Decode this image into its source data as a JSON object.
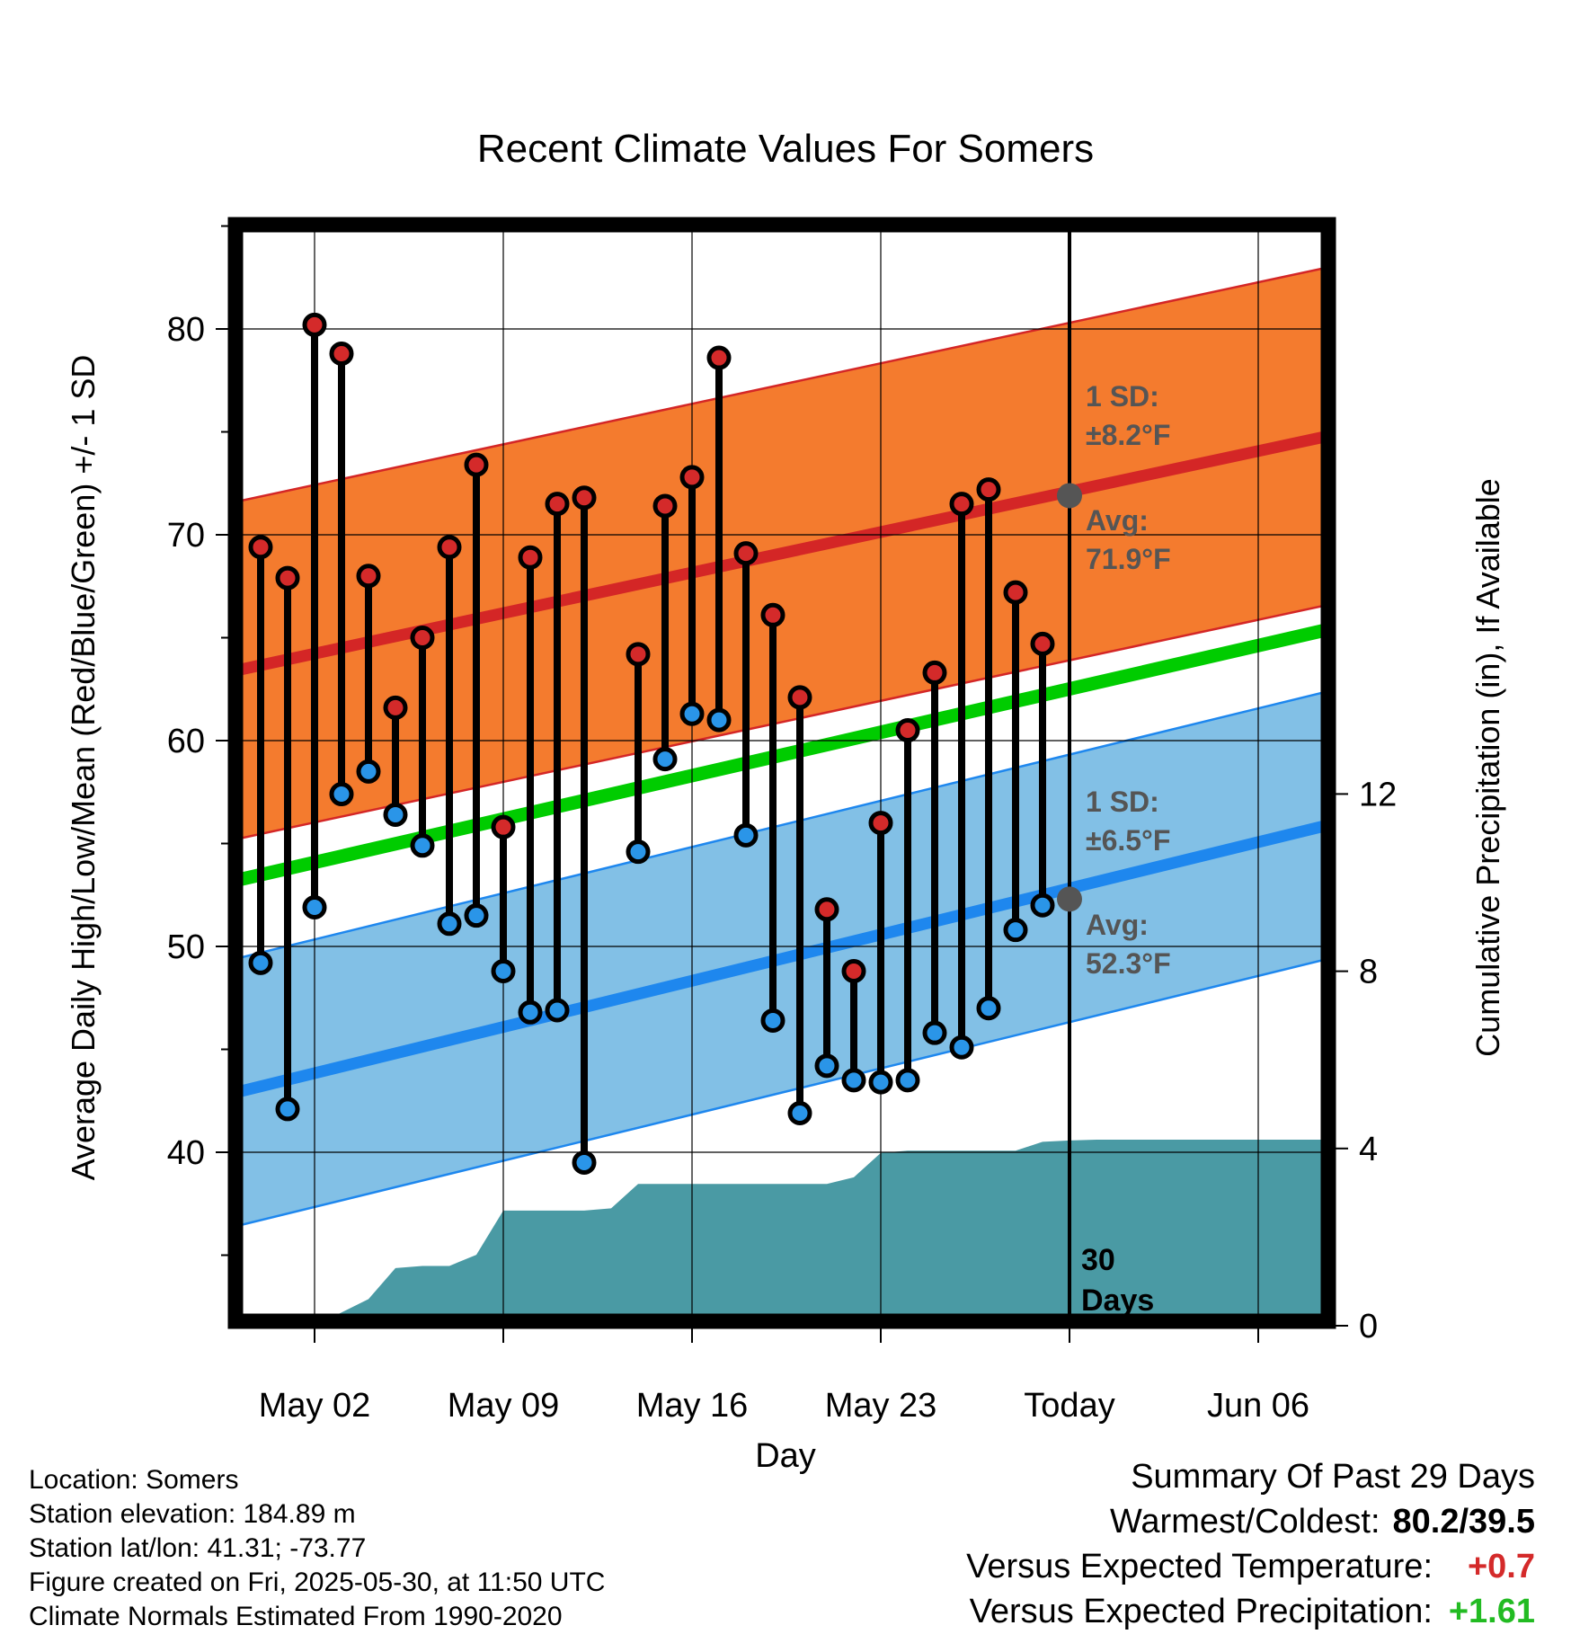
{
  "chart_data": {
    "type": "line",
    "title": "Recent Climate Values For Somers",
    "xlabel": "Day",
    "ylabel_left": "Average Daily High/Low/Mean (Red/Blue/Green) +/- 1 SD",
    "ylabel_right": "Cumulative Precipitation (in), If Available",
    "x_ticks": [
      "May 02",
      "May 09",
      "May 16",
      "May 23",
      "Today",
      "Jun 06"
    ],
    "ylim": [
      31,
      86
    ],
    "y_ticks": [
      40,
      50,
      60,
      70,
      80
    ],
    "precip_ylim": [
      0,
      17.6
    ],
    "precip_ticks": [
      0,
      4,
      8,
      12
    ],
    "today_label": "30\nDays",
    "normals": {
      "high_avg": [
        63.4,
        74.8
      ],
      "high_sd": 8.2,
      "low_avg": [
        42.9,
        55.9
      ],
      "low_sd": 6.5,
      "mean_avg": [
        53.2,
        65.4
      ],
      "high_annotation": {
        "sd": "1 SD:",
        "sd_val": "±8.2°F",
        "avg": "Avg:",
        "avg_val": "71.9°F",
        "today_value": 71.9
      },
      "low_annotation": {
        "sd": "1 SD:",
        "sd_val": "±6.5°F",
        "avg": "Avg:",
        "avg_val": "52.3°F",
        "today_value": 52.3
      }
    },
    "daily": {
      "highs": [
        69.4,
        67.9,
        80.2,
        78.8,
        68.0,
        61.6,
        65.0,
        69.4,
        73.4,
        55.8,
        68.9,
        71.5,
        71.8,
        null,
        64.2,
        71.4,
        72.8,
        78.6,
        69.1,
        66.1,
        62.1,
        51.8,
        48.8,
        56.0,
        60.5,
        63.3,
        71.5,
        72.2,
        67.2,
        64.7
      ],
      "lows": [
        49.2,
        42.1,
        51.9,
        57.4,
        58.5,
        56.4,
        54.9,
        51.1,
        51.5,
        48.8,
        46.8,
        46.9,
        39.5,
        null,
        54.6,
        59.1,
        61.3,
        61.0,
        55.4,
        46.4,
        41.9,
        44.2,
        43.5,
        43.4,
        43.5,
        45.8,
        45.1,
        47.0,
        50.8,
        52.0
      ]
    },
    "precip_cumulative": [
      0,
      0.3,
      0.6,
      1.3,
      1.35,
      1.35,
      1.6,
      2.6,
      2.6,
      2.6,
      2.6,
      2.65,
      3.2,
      3.2,
      3.2,
      3.2,
      3.2,
      3.2,
      3.2,
      3.2,
      3.35,
      3.9,
      3.95,
      3.95,
      3.95,
      3.95,
      3.95,
      4.15,
      4.18,
      4.2
    ]
  },
  "footer": {
    "location": "Location: Somers",
    "elevation": "Station elevation: 184.89 m",
    "latlon": "Station lat/lon: 41.31; -73.77",
    "created": "Figure created on Fri, 2025-05-30, at 11:50 UTC",
    "normals": "Climate Normals Estimated From 1990-2020"
  },
  "summary": {
    "title": "Summary Of Past 29 Days",
    "warm_cold_label": "Warmest/Coldest:",
    "warm_cold_value": "80.2/39.5",
    "temp_label": "Versus Expected Temperature:",
    "temp_value": "+0.7",
    "temp_color": "#d42a2a",
    "precip_label": "Versus Expected Precipitation:",
    "precip_value": "+1.61",
    "precip_color": "#22bb22"
  },
  "colors": {
    "high_band": "#f47b2e",
    "high_line": "#d42626",
    "low_band": "#82c0e6",
    "low_line": "#1e87ee",
    "mean_line": "#00cc00",
    "precip": "#4a9aa4",
    "annotation": "#555555"
  }
}
